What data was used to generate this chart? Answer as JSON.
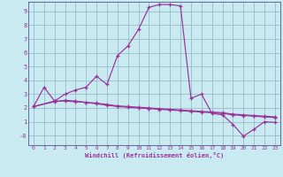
{
  "xlabel": "Windchill (Refroidissement éolien,°C)",
  "background_color": "#c8eaf0",
  "line_color": "#993399",
  "grid_color": "#99bbcc",
  "spine_color": "#666699",
  "xlim": [
    -0.5,
    23.5
  ],
  "ylim": [
    -0.7,
    9.7
  ],
  "xticks": [
    0,
    1,
    2,
    3,
    4,
    5,
    6,
    7,
    8,
    9,
    10,
    11,
    12,
    13,
    14,
    15,
    16,
    17,
    18,
    19,
    20,
    21,
    22,
    23
  ],
  "yticks": [
    0,
    1,
    2,
    3,
    4,
    5,
    6,
    7,
    8,
    9
  ],
  "ytick_labels": [
    "-0",
    "1",
    "2",
    "3",
    "4",
    "5",
    "6",
    "7",
    "8",
    "9"
  ],
  "line1_x": [
    0,
    1,
    2,
    3,
    4,
    5,
    6,
    7,
    8,
    9,
    10,
    11,
    12,
    13,
    14,
    15,
    16,
    17,
    18,
    19,
    20,
    21,
    22,
    23
  ],
  "line1_y": [
    2.1,
    3.5,
    2.5,
    3.0,
    3.3,
    3.5,
    4.3,
    3.7,
    5.8,
    6.5,
    7.7,
    9.3,
    9.5,
    9.5,
    9.4,
    2.7,
    3.0,
    1.6,
    1.5,
    0.8,
    -0.05,
    0.45,
    1.0,
    0.95
  ],
  "line2_x": [
    0,
    2,
    3,
    4,
    5,
    6,
    7,
    8,
    9,
    10,
    11,
    12,
    13,
    14,
    15,
    16,
    17,
    18,
    19,
    20,
    21,
    22,
    23
  ],
  "line2_y": [
    2.1,
    2.45,
    2.55,
    2.5,
    2.4,
    2.3,
    2.2,
    2.1,
    2.05,
    2.0,
    1.95,
    1.9,
    1.85,
    1.8,
    1.75,
    1.7,
    1.65,
    1.6,
    1.5,
    1.45,
    1.4,
    1.35,
    1.3
  ],
  "line3_x": [
    0,
    2,
    3,
    4,
    5,
    6,
    7,
    8,
    9,
    10,
    11,
    12,
    13,
    14,
    15,
    16,
    17,
    18,
    19,
    20,
    21,
    22,
    23
  ],
  "line3_y": [
    2.1,
    2.5,
    2.5,
    2.45,
    2.4,
    2.35,
    2.25,
    2.15,
    2.1,
    2.05,
    2.0,
    1.95,
    1.9,
    1.85,
    1.8,
    1.75,
    1.7,
    1.65,
    1.55,
    1.5,
    1.45,
    1.4,
    1.35
  ]
}
